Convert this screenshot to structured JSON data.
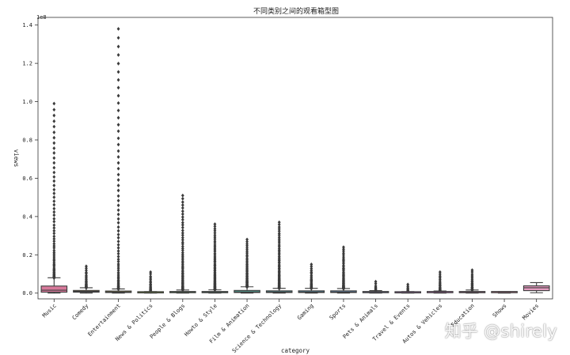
{
  "watermark": "知乎 @shirely",
  "chart_data": {
    "type": "box",
    "title": "不同类别之间的观看箱型图",
    "xlabel": "category",
    "ylabel": "views",
    "y_scale_label": "1e8",
    "y_unit": 100000000,
    "ylim": [
      -0.03,
      1.44
    ],
    "yticks": [
      0.0,
      0.2,
      0.4,
      0.6,
      0.8,
      1.0,
      1.2,
      1.4
    ],
    "ytick_labels": [
      "0.0",
      "0.2",
      "0.4",
      "0.6",
      "0.8",
      "1.0",
      "1.2",
      "1.4"
    ],
    "categories": [
      "Music",
      "Comedy",
      "Entertainment",
      "News & Politics",
      "People & Blogs",
      "Howto & Style",
      "Film & Animation",
      "Science & Technology",
      "Gaming",
      "Sports",
      "Pets & Animals",
      "Travel & Events",
      "Autos & Vehicles",
      "Education",
      "Shows",
      "Movies"
    ],
    "colors": [
      "#d7799a",
      "#c0934c",
      "#a79c3e",
      "#86a63c",
      "#4f9e4d",
      "#509f80",
      "#52a095",
      "#54a0a8",
      "#57a2c0",
      "#6b9fd0",
      "#9a8fd6",
      "#bf7fd3",
      "#d171c6",
      "#dc72ae",
      "#d8849c",
      "#e49cc0"
    ],
    "boxes": [
      {
        "q1": 0.005,
        "median": 0.015,
        "q3": 0.037,
        "whisker_low": 0.0,
        "whisker_high": 0.08,
        "outlier_max": 0.99
      },
      {
        "q1": 0.005,
        "median": 0.009,
        "q3": 0.014,
        "whisker_low": 0.0,
        "whisker_high": 0.028,
        "outlier_max": 0.14
      },
      {
        "q1": 0.003,
        "median": 0.006,
        "q3": 0.011,
        "whisker_low": 0.0,
        "whisker_high": 0.022,
        "outlier_max": 1.38
      },
      {
        "q1": 0.001,
        "median": 0.002,
        "q3": 0.004,
        "whisker_low": 0.0,
        "whisker_high": 0.008,
        "outlier_max": 0.11
      },
      {
        "q1": 0.002,
        "median": 0.004,
        "q3": 0.008,
        "whisker_low": 0.0,
        "whisker_high": 0.016,
        "outlier_max": 0.51
      },
      {
        "q1": 0.002,
        "median": 0.004,
        "q3": 0.008,
        "whisker_low": 0.0,
        "whisker_high": 0.017,
        "outlier_max": 0.36
      },
      {
        "q1": 0.003,
        "median": 0.006,
        "q3": 0.014,
        "whisker_low": 0.0,
        "whisker_high": 0.033,
        "outlier_max": 0.28
      },
      {
        "q1": 0.003,
        "median": 0.006,
        "q3": 0.012,
        "whisker_low": 0.0,
        "whisker_high": 0.025,
        "outlier_max": 0.37
      },
      {
        "q1": 0.003,
        "median": 0.006,
        "q3": 0.012,
        "whisker_low": 0.0,
        "whisker_high": 0.025,
        "outlier_max": 0.15
      },
      {
        "q1": 0.003,
        "median": 0.006,
        "q3": 0.012,
        "whisker_low": 0.0,
        "whisker_high": 0.024,
        "outlier_max": 0.24
      },
      {
        "q1": 0.002,
        "median": 0.004,
        "q3": 0.007,
        "whisker_low": 0.0,
        "whisker_high": 0.013,
        "outlier_max": 0.06
      },
      {
        "q1": 0.001,
        "median": 0.002,
        "q3": 0.004,
        "whisker_low": 0.0,
        "whisker_high": 0.008,
        "outlier_max": 0.045
      },
      {
        "q1": 0.002,
        "median": 0.003,
        "q3": 0.006,
        "whisker_low": 0.0,
        "whisker_high": 0.011,
        "outlier_max": 0.11
      },
      {
        "q1": 0.002,
        "median": 0.004,
        "q3": 0.008,
        "whisker_low": 0.0,
        "whisker_high": 0.016,
        "outlier_max": 0.12
      },
      {
        "q1": 0.002,
        "median": 0.003,
        "q3": 0.005,
        "whisker_low": 0.0,
        "whisker_high": 0.008,
        "outlier_max": 0.005
      },
      {
        "q1": 0.013,
        "median": 0.028,
        "q3": 0.038,
        "whisker_low": 0.002,
        "whisker_high": 0.055,
        "outlier_max": 0.055
      }
    ]
  }
}
